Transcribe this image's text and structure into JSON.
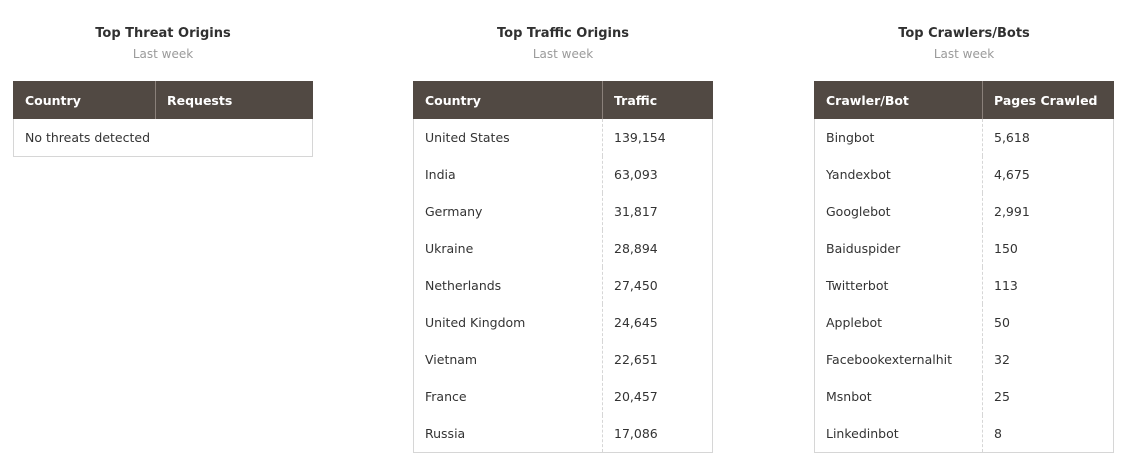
{
  "panels": [
    {
      "title": "Top Threat Origins",
      "subtitle": "Last week",
      "columns": [
        "Country",
        "Requests"
      ],
      "empty": "No threats detected"
    },
    {
      "title": "Top Traffic Origins",
      "subtitle": "Last week",
      "columns": [
        "Country",
        "Traffic"
      ],
      "rows": [
        [
          "United States",
          "139,154"
        ],
        [
          "India",
          "63,093"
        ],
        [
          "Germany",
          "31,817"
        ],
        [
          "Ukraine",
          "28,894"
        ],
        [
          "Netherlands",
          "27,450"
        ],
        [
          "United Kingdom",
          "24,645"
        ],
        [
          "Vietnam",
          "22,651"
        ],
        [
          "France",
          "20,457"
        ],
        [
          "Russia",
          "17,086"
        ]
      ]
    },
    {
      "title": "Top Crawlers/Bots",
      "subtitle": "Last week",
      "columns": [
        "Crawler/Bot",
        "Pages Crawled"
      ],
      "rows": [
        [
          "Bingbot",
          "5,618"
        ],
        [
          "Yandexbot",
          "4,675"
        ],
        [
          "Googlebot",
          "2,991"
        ],
        [
          "Baiduspider",
          "150"
        ],
        [
          "Twitterbot",
          "113"
        ],
        [
          "Applebot",
          "50"
        ],
        [
          "Facebookexternalhit",
          "32"
        ],
        [
          "Msnbot",
          "25"
        ],
        [
          "Linkedinbot",
          "8"
        ]
      ]
    }
  ]
}
